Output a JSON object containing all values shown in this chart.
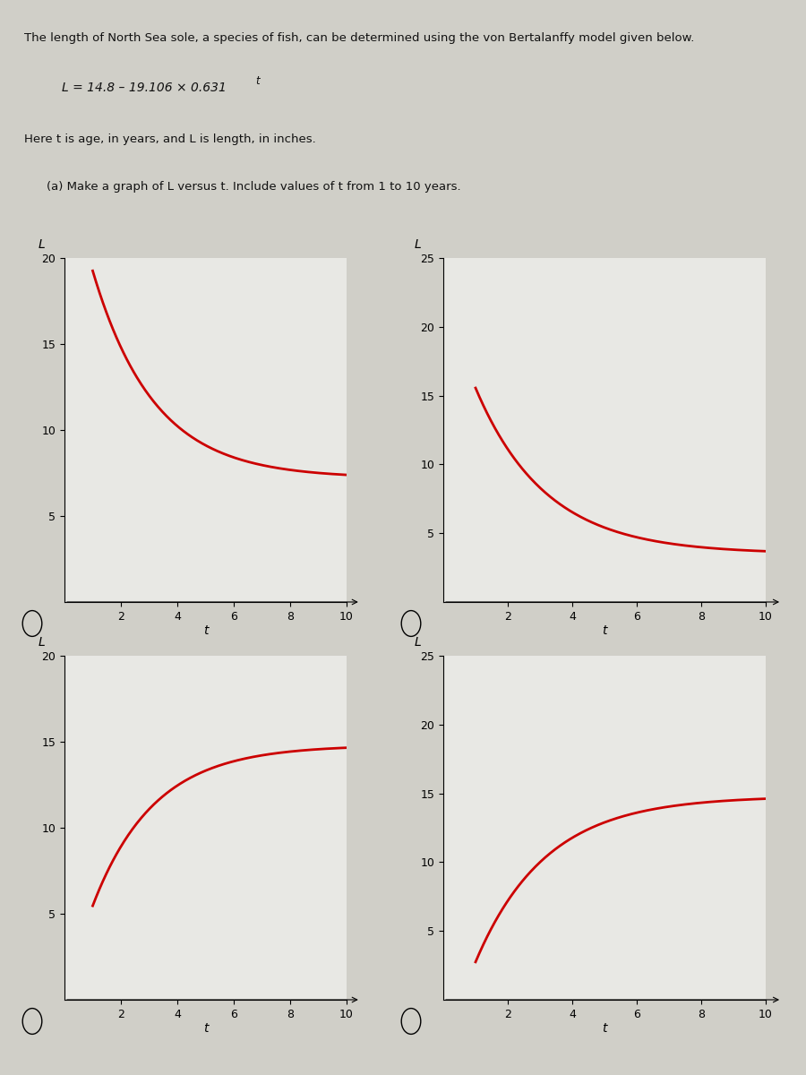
{
  "title_text": "The length of North Sea sole, a species of fish, can be determined using the von Bertalanffy model given below.",
  "formula_line": "L = 14.8 – 19.106 × 0.631",
  "formula_superscript": "t",
  "description_line": "Here t is age, in years, and L is length, in inches.",
  "question_line": "(a) Make a graph of L versus t. Include values of t from 1 to 10 years.",
  "page_bg": "#d0cfc8",
  "plot_bg": "#e8e8e4",
  "curve_color": "#cc0000",
  "curve_linewidth": 2.0,
  "t_min": 1,
  "t_max": 10,
  "graphs": [
    {
      "id": "top_left",
      "func": "decreasing_wrong1",
      "xlim": [
        0,
        10
      ],
      "ylim": [
        0,
        20
      ],
      "xticks": [
        2,
        4,
        6,
        8,
        10
      ],
      "yticks": [
        5,
        10,
        15,
        20
      ],
      "xlabel": "t",
      "ylabel": "L",
      "has_radio": true
    },
    {
      "id": "top_right",
      "func": "decreasing_correct",
      "xlim": [
        0,
        10
      ],
      "ylim": [
        0,
        25
      ],
      "xticks": [
        2,
        4,
        6,
        8,
        10
      ],
      "yticks": [
        5,
        10,
        15,
        20,
        25
      ],
      "xlabel": "t",
      "ylabel": "L",
      "has_radio": true
    },
    {
      "id": "bottom_left",
      "func": "increasing_wrong1",
      "xlim": [
        0,
        10
      ],
      "ylim": [
        0,
        20
      ],
      "xticks": [
        2,
        4,
        6,
        8,
        10
      ],
      "yticks": [
        5,
        10,
        15,
        20
      ],
      "xlabel": "t",
      "ylabel": "L",
      "has_radio": true
    },
    {
      "id": "bottom_right",
      "func": "increasing_correct",
      "xlim": [
        0,
        10
      ],
      "ylim": [
        0,
        25
      ],
      "xticks": [
        2,
        4,
        6,
        8,
        10
      ],
      "yticks": [
        5,
        10,
        15,
        20,
        25
      ],
      "xlabel": "t",
      "ylabel": "L",
      "has_radio": true
    }
  ],
  "text_color": "#111111",
  "font_size_text": 9.5,
  "font_size_axis": 9,
  "font_size_label": 10
}
